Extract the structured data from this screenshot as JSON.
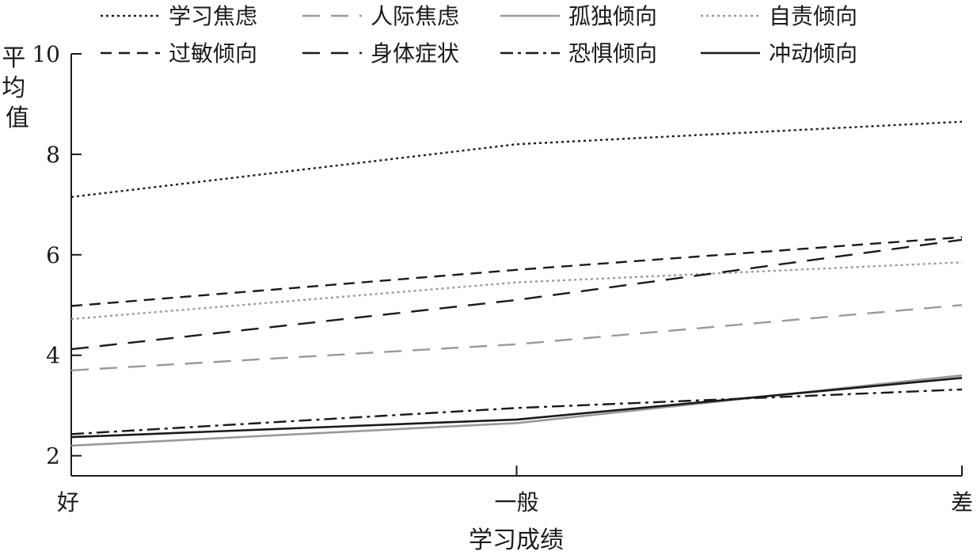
{
  "chart_data": {
    "type": "line",
    "title": "",
    "xlabel": "学习成绩",
    "ylabel": "平均值",
    "categories": [
      "好",
      "一般",
      "差"
    ],
    "ylim": [
      1.6,
      10
    ],
    "yticks": [
      2,
      4,
      6,
      8,
      10
    ],
    "grid": false,
    "legend_position": "top",
    "series": [
      {
        "name": "学习焦虑",
        "values": [
          7.15,
          8.2,
          8.65
        ],
        "color": "#1a1a1a",
        "dash": "dotted"
      },
      {
        "name": "人际焦虑",
        "values": [
          3.7,
          4.22,
          5.0
        ],
        "color": "#999999",
        "dash": "dash-long"
      },
      {
        "name": "孤独倾向",
        "values": [
          2.2,
          2.65,
          3.6
        ],
        "color": "#999999",
        "dash": "solid"
      },
      {
        "name": "自责倾向",
        "values": [
          4.72,
          5.45,
          5.85
        ],
        "color": "#999999",
        "dash": "dotted"
      },
      {
        "name": "过敏倾向",
        "values": [
          4.98,
          5.7,
          6.35
        ],
        "color": "#1a1a1a",
        "dash": "dash"
      },
      {
        "name": "身体症状",
        "values": [
          4.12,
          5.1,
          6.3
        ],
        "color": "#1a1a1a",
        "dash": "dash-long"
      },
      {
        "name": "恐惧倾向",
        "values": [
          2.43,
          2.95,
          3.32
        ],
        "color": "#1a1a1a",
        "dash": "dash-dot"
      },
      {
        "name": "冲动倾向",
        "values": [
          2.37,
          2.72,
          3.55
        ],
        "color": "#1a1a1a",
        "dash": "solid"
      }
    ]
  }
}
